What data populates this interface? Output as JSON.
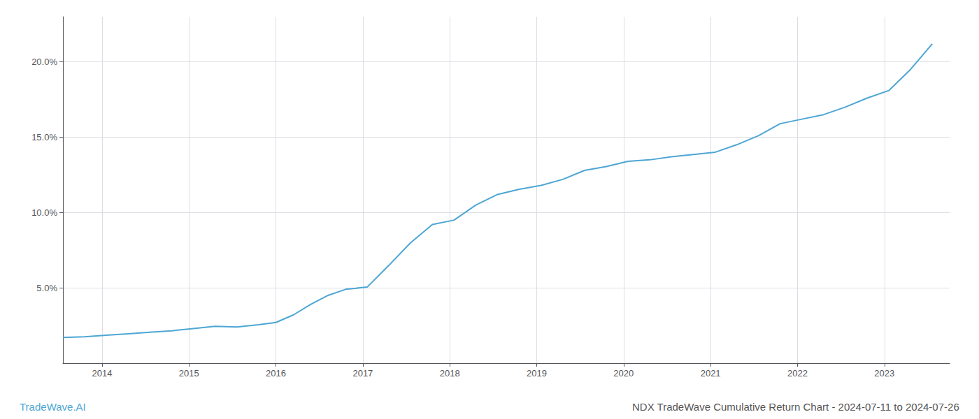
{
  "chart_data": {
    "type": "line",
    "title": "NDX TradeWave Cumulative Return Chart - 2024-07-11 to 2024-07-26",
    "annotations": [
      "TradeWave.AI"
    ],
    "x": [
      2013.55,
      2013.8,
      2014.05,
      2014.3,
      2014.55,
      2014.8,
      2015.05,
      2015.3,
      2015.55,
      2015.8,
      2016.0,
      2016.2,
      2016.4,
      2016.6,
      2016.8,
      2017.05,
      2017.3,
      2017.55,
      2017.8,
      2018.05,
      2018.3,
      2018.55,
      2018.8,
      2019.05,
      2019.3,
      2019.55,
      2019.8,
      2020.05,
      2020.3,
      2020.55,
      2020.8,
      2021.05,
      2021.3,
      2021.55,
      2021.8,
      2022.05,
      2022.3,
      2022.55,
      2022.8,
      2023.05,
      2023.3,
      2023.55
    ],
    "values": [
      1.7,
      1.75,
      1.85,
      1.95,
      2.05,
      2.15,
      2.3,
      2.45,
      2.4,
      2.55,
      2.7,
      3.2,
      3.9,
      4.5,
      4.9,
      5.05,
      6.5,
      8.0,
      9.2,
      9.5,
      10.5,
      11.2,
      11.55,
      11.8,
      12.2,
      12.8,
      13.05,
      13.4,
      13.5,
      13.7,
      13.85,
      14.0,
      14.5,
      15.1,
      15.9,
      16.2,
      16.5,
      17.0,
      17.6,
      18.1,
      19.5,
      21.2
    ],
    "color": "#4da6d4",
    "xlim": [
      2013.55,
      2023.75
    ],
    "xticks": [
      2014,
      2015,
      2016,
      2017,
      2018,
      2019,
      2020,
      2021,
      2022,
      2023
    ],
    "ylim": [
      0,
      23
    ],
    "yticks": [
      {
        "value": 5.0,
        "label": "5.0%"
      },
      {
        "value": 10.0,
        "label": "10.0%"
      },
      {
        "value": 15.0,
        "label": "15.0%"
      },
      {
        "value": 20.0,
        "label": "20.0%"
      }
    ],
    "grid": true
  }
}
